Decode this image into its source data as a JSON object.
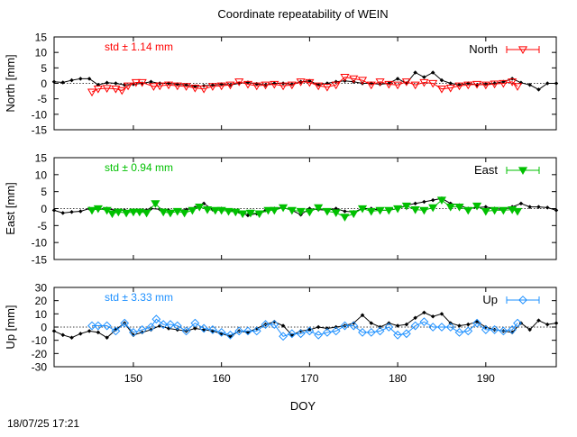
{
  "title": "Coordinate repeatability of WEIN",
  "footer_timestamp": "18/07/25 17:21",
  "chart_data": {
    "type": "line",
    "xlabel": "DOY",
    "xlim": [
      141,
      198
    ],
    "xticks": [
      150,
      160,
      170,
      180,
      190
    ],
    "reference_color": "#000000",
    "panels": [
      {
        "id": "north",
        "ylabel": "North [mm]",
        "ylim": [
          -15,
          15
        ],
        "yticks": [
          -15,
          -10,
          -5,
          0,
          5,
          10,
          15
        ],
        "std_label": "std ± 1.14 mm",
        "legend": "North",
        "color": "#ff0000",
        "marker": "triangle-down-open",
        "reference": {
          "x": [
            141,
            142,
            143,
            144,
            145,
            146,
            147,
            148,
            149,
            150,
            151,
            152,
            153,
            154,
            155,
            156,
            157,
            158,
            159,
            160,
            161,
            162,
            163,
            164,
            165,
            166,
            167,
            168,
            169,
            170,
            171,
            172,
            173,
            174,
            175,
            176,
            177,
            178,
            179,
            180,
            181,
            182,
            183,
            184,
            185,
            186,
            187,
            188,
            189,
            190,
            191,
            192,
            193,
            194,
            195,
            196,
            197,
            198
          ],
          "y": [
            0.5,
            0.3,
            1.0,
            1.5,
            1.5,
            -0.5,
            0.2,
            0.0,
            -0.5,
            -0.3,
            0.0,
            0.5,
            0.0,
            0.0,
            -0.3,
            -0.5,
            -1.0,
            -0.8,
            -0.6,
            -0.3,
            -0.5,
            0.0,
            0.3,
            -0.2,
            -0.5,
            0.0,
            0.0,
            -0.3,
            0.5,
            0.8,
            -0.5,
            0.0,
            0.5,
            0.8,
            0.5,
            0.0,
            0.0,
            -0.3,
            0.0,
            1.5,
            0.0,
            3.5,
            2.0,
            3.5,
            1.0,
            0.0,
            -0.5,
            0.0,
            -0.5,
            -0.3,
            0.0,
            0.5,
            1.5,
            0.2,
            -0.5,
            -2.0,
            0.0,
            0.0
          ]
        },
        "series": {
          "x": [
            145.3,
            146.0,
            147.0,
            148.0,
            148.7,
            149.4,
            150.3,
            151.0,
            152.3,
            153.0,
            154.0,
            155.0,
            156.0,
            157.0,
            158.0,
            159.0,
            160.0,
            161.0,
            162.0,
            163.0,
            164.0,
            165.0,
            166.0,
            167.0,
            168.0,
            169.0,
            170.0,
            171.0,
            172.0,
            173.0,
            174.0,
            175.0,
            176.0,
            177.0,
            178.0,
            179.0,
            180.0,
            181.0,
            182.0,
            183.0,
            184.0,
            185.0,
            186.0,
            187.0,
            188.0,
            189.0,
            190.0,
            191.0,
            192.0,
            193.0,
            193.6
          ],
          "y": [
            -2.8,
            -1.8,
            -1.6,
            -1.8,
            -2.3,
            -0.8,
            0.3,
            0.3,
            -1.0,
            -0.8,
            -0.5,
            -0.8,
            -1.0,
            -1.5,
            -1.8,
            -1.0,
            -0.8,
            -0.5,
            0.5,
            -0.3,
            -0.8,
            -0.5,
            -0.3,
            -0.8,
            -0.5,
            0.5,
            0.3,
            -0.8,
            -1.2,
            -0.5,
            2.0,
            1.5,
            1.0,
            -0.5,
            0.5,
            -0.3,
            -0.5,
            0.5,
            -0.5,
            0.3,
            0.0,
            -1.8,
            -1.5,
            -0.8,
            -0.5,
            -0.3,
            -0.5,
            -0.2,
            0.0,
            0.5,
            -1.0
          ]
        }
      },
      {
        "id": "east",
        "ylabel": "East [mm]",
        "ylim": [
          -15,
          15
        ],
        "yticks": [
          -15,
          -10,
          -5,
          0,
          5,
          10,
          15
        ],
        "std_label": "std ± 0.94 mm",
        "legend": "East",
        "color": "#00c000",
        "marker": "triangle-down-filled",
        "reference": {
          "x": [
            141,
            142,
            143,
            144,
            145,
            146,
            147,
            148,
            149,
            150,
            151,
            152,
            153,
            154,
            155,
            156,
            157,
            158,
            159,
            160,
            161,
            162,
            163,
            164,
            165,
            166,
            167,
            168,
            169,
            170,
            171,
            172,
            173,
            174,
            175,
            176,
            177,
            178,
            179,
            180,
            181,
            182,
            183,
            184,
            185,
            186,
            187,
            188,
            189,
            190,
            191,
            192,
            193,
            194,
            195,
            196,
            197,
            198
          ],
          "y": [
            -0.5,
            -1.3,
            -1.0,
            -0.8,
            0.0,
            -0.3,
            0.0,
            -0.5,
            -0.5,
            -0.8,
            -0.5,
            0.0,
            -0.2,
            -0.5,
            -0.5,
            -0.3,
            0.3,
            1.5,
            -0.3,
            0.0,
            -0.5,
            -1.0,
            -2.0,
            -1.5,
            -0.5,
            0.0,
            0.3,
            -0.5,
            -1.8,
            0.0,
            -0.3,
            -0.5,
            0.0,
            -0.8,
            -1.0,
            0.0,
            0.0,
            -0.5,
            -0.5,
            0.0,
            1.0,
            1.5,
            2.0,
            2.5,
            3.0,
            1.5,
            1.0,
            0.0,
            0.3,
            0.5,
            0.0,
            -0.3,
            0.5,
            1.5,
            0.5,
            0.5,
            0.3,
            -0.5
          ]
        },
        "series": {
          "x": [
            145.3,
            146.0,
            147.0,
            147.6,
            148.3,
            149.2,
            150.0,
            150.7,
            151.5,
            152.5,
            153.4,
            154.2,
            155.0,
            155.8,
            156.7,
            157.5,
            158.4,
            159.3,
            160.0,
            160.8,
            161.6,
            162.4,
            163.3,
            164.3,
            165.3,
            166.0,
            167.0,
            168.0,
            169.0,
            170.0,
            171.0,
            172.0,
            173.0,
            174.0,
            175.0,
            176.0,
            177.0,
            178.0,
            179.0,
            180.0,
            181.0,
            182.0,
            183.0,
            184.0,
            185.0,
            186.0,
            187.0,
            188.0,
            189.0,
            190.0,
            191.0,
            192.0,
            193.0,
            193.6
          ],
          "y": [
            -0.5,
            0.0,
            -0.5,
            -1.5,
            -1.0,
            -1.3,
            -1.0,
            -1.0,
            -1.3,
            1.5,
            -1.0,
            -1.3,
            -0.8,
            -1.3,
            -0.5,
            0.5,
            -0.3,
            -0.5,
            -0.5,
            -0.8,
            -1.0,
            -1.5,
            -1.3,
            -1.5,
            -0.5,
            -0.5,
            0.3,
            -0.5,
            -0.8,
            -1.0,
            0.3,
            -0.8,
            -1.2,
            -2.5,
            -1.5,
            0.0,
            -0.8,
            -0.5,
            -0.5,
            0.0,
            0.8,
            -0.3,
            -0.5,
            0.3,
            2.5,
            0.5,
            0.5,
            -0.5,
            0.8,
            -0.8,
            -0.5,
            -0.5,
            -0.3,
            -0.8
          ]
        }
      },
      {
        "id": "up",
        "ylabel": "Up [mm]",
        "ylim": [
          -30,
          30
        ],
        "yticks": [
          -30,
          -20,
          -10,
          0,
          10,
          20,
          30
        ],
        "std_label": "std ± 3.33 mm",
        "legend": "Up",
        "color": "#1e90ff",
        "marker": "diamond-open",
        "reference": {
          "x": [
            141,
            142,
            143,
            144,
            145,
            146,
            147,
            148,
            149,
            150,
            151,
            152,
            153,
            154,
            155,
            156,
            157,
            158,
            159,
            160,
            161,
            162,
            163,
            164,
            165,
            166,
            167,
            168,
            169,
            170,
            171,
            172,
            173,
            174,
            175,
            176,
            177,
            178,
            179,
            180,
            181,
            182,
            183,
            184,
            185,
            186,
            187,
            188,
            189,
            190,
            191,
            192,
            193,
            194,
            195,
            196,
            197,
            198
          ],
          "y": [
            -3,
            -6,
            -8,
            -5,
            -3,
            -4,
            -8,
            -2,
            3,
            -6,
            -4,
            -2,
            1,
            -1,
            -2,
            -3,
            -1,
            -2,
            -3,
            -5,
            -7,
            -3,
            -4,
            -1,
            2,
            4,
            1,
            -6,
            -3,
            -2,
            0,
            -1,
            0,
            1,
            3,
            9,
            3,
            0,
            3,
            1,
            2,
            7,
            11,
            8,
            10,
            3,
            1,
            2,
            4,
            0,
            -2,
            -3,
            -4,
            3,
            -2,
            5,
            2,
            3
          ]
        },
        "series": {
          "x": [
            145.3,
            146.0,
            147.0,
            148.0,
            149.0,
            150.0,
            151.0,
            152.0,
            152.6,
            153.4,
            154.2,
            155.0,
            156.0,
            157.0,
            158.0,
            159.0,
            160.0,
            161.0,
            162.0,
            163.0,
            164.0,
            165.0,
            166.0,
            167.0,
            168.0,
            169.0,
            170.0,
            171.0,
            172.0,
            173.0,
            174.0,
            175.0,
            176.0,
            177.0,
            178.0,
            179.0,
            180.0,
            181.0,
            182.0,
            183.0,
            184.0,
            185.0,
            186.0,
            187.0,
            188.0,
            189.0,
            190.0,
            191.0,
            192.0,
            193.0,
            193.6
          ],
          "y": [
            1,
            1,
            1,
            -3,
            3,
            -4,
            -2,
            0,
            6,
            2,
            2,
            1,
            -3,
            3,
            -1,
            -2,
            -4,
            -6,
            -3,
            -3,
            -3,
            2,
            2,
            -7,
            -5,
            -5,
            -3,
            -6,
            -4,
            -3,
            1,
            1,
            -4,
            -4,
            -3,
            0,
            -6,
            -5,
            1,
            4,
            0,
            0,
            0,
            -4,
            -3,
            3,
            -2,
            -2,
            -3,
            -2,
            3
          ]
        }
      }
    ]
  }
}
